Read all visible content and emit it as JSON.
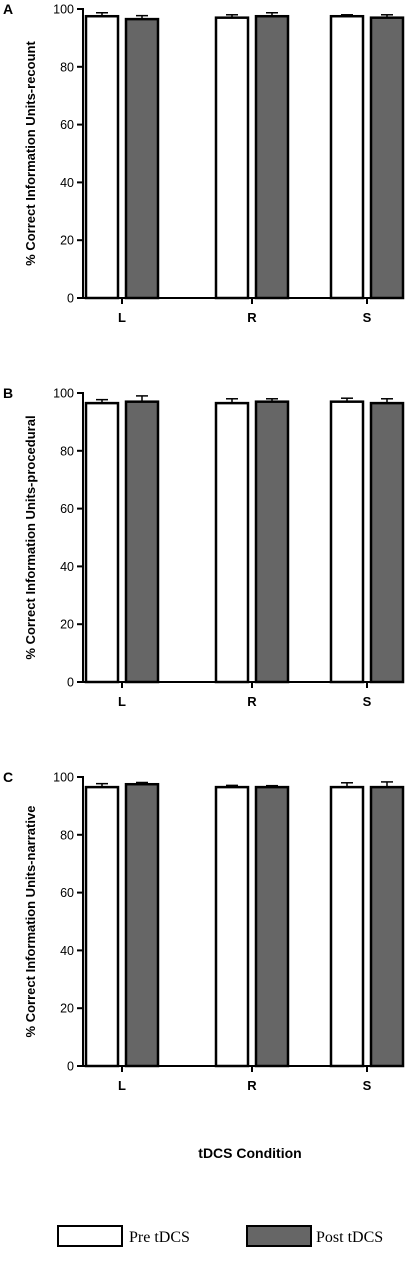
{
  "chart_data": [
    {
      "panel": "A",
      "type": "bar",
      "ylabel": "% Correct Information Units-recount",
      "categories": [
        "L",
        "R",
        "S"
      ],
      "yticks": [
        "0",
        "20",
        "40",
        "60",
        "80",
        "100"
      ],
      "ylim": [
        0,
        100
      ],
      "series": [
        {
          "name": "Pre tDCS",
          "values": [
            97.5,
            97.0,
            97.5
          ],
          "errors": [
            1.2,
            1.0,
            0.5
          ]
        },
        {
          "name": "Post tDCS",
          "values": [
            96.5,
            97.5,
            97.0
          ],
          "errors": [
            1.2,
            1.2,
            1.0
          ]
        }
      ]
    },
    {
      "panel": "B",
      "type": "bar",
      "ylabel": "% Correct Information Units-procedural",
      "categories": [
        "L",
        "R",
        "S"
      ],
      "yticks": [
        "0",
        "20",
        "40",
        "60",
        "80",
        "100"
      ],
      "ylim": [
        0,
        100
      ],
      "series": [
        {
          "name": "Pre tDCS",
          "values": [
            96.5,
            96.5,
            97.0
          ],
          "errors": [
            1.2,
            1.5,
            1.2
          ]
        },
        {
          "name": "Post tDCS",
          "values": [
            97.0,
            97.0,
            96.5
          ],
          "errors": [
            2.0,
            1.0,
            1.5
          ]
        }
      ]
    },
    {
      "panel": "C",
      "type": "bar",
      "ylabel": "% Correct Information Units-narrative",
      "categories": [
        "L",
        "R",
        "S"
      ],
      "yticks": [
        "0",
        "20",
        "40",
        "60",
        "80",
        "100"
      ],
      "ylim": [
        0,
        100
      ],
      "series": [
        {
          "name": "Pre tDCS",
          "values": [
            96.5,
            96.5,
            96.5
          ],
          "errors": [
            1.2,
            0.6,
            1.5
          ]
        },
        {
          "name": "Post tDCS",
          "values": [
            97.5,
            96.5,
            96.5
          ],
          "errors": [
            0.6,
            0.5,
            1.8
          ]
        }
      ]
    }
  ],
  "xlabel": "tDCS Condition",
  "legend": {
    "placement": "bottom",
    "items": [
      {
        "label": "Pre tDCS",
        "color": "#ffffff"
      },
      {
        "label": "Post tDCS",
        "color": "#666666"
      }
    ]
  },
  "colors": {
    "pre": "#ffffff",
    "post": "#666666",
    "stroke": "#000000"
  }
}
